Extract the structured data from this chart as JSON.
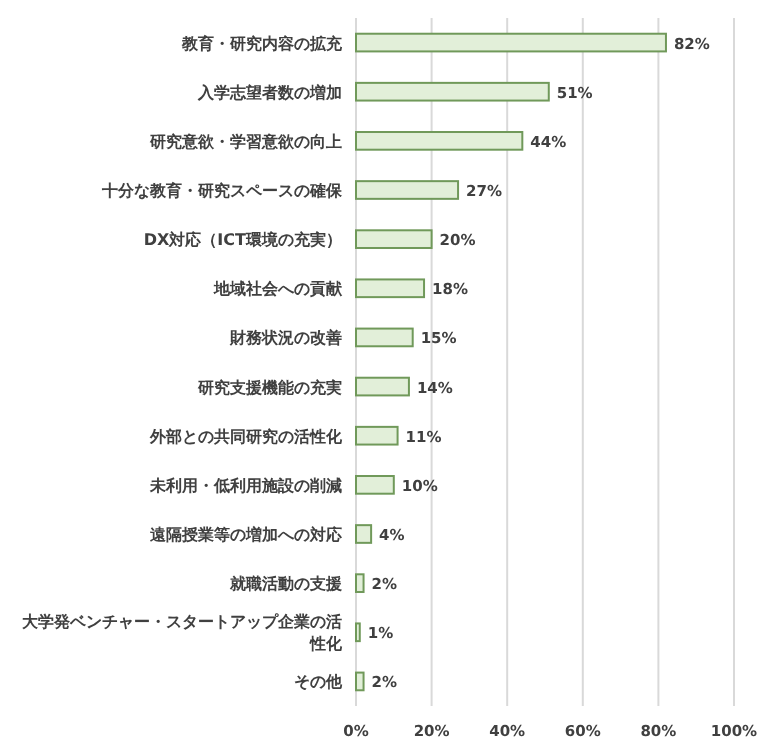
{
  "chart_data": {
    "type": "bar",
    "orientation": "horizontal",
    "categories": [
      "教育・研究内容の拡充",
      "入学志望者数の増加",
      "研究意欲・学習意欲の向上",
      "十分な教育・研究スペースの確保",
      "DX対応（ICT環境の充実）",
      "地域社会への貢献",
      "財務状況の改善",
      "研究支援機能の充実",
      "外部との共同研究の活性化",
      "未利用・低利用施設の削減",
      "遠隔授業等の増加への対応",
      "就職活動の支援",
      "大学発ベンチャー・スタートアップ企業の活性化",
      "その他"
    ],
    "values": [
      82,
      51,
      44,
      27,
      20,
      18,
      15,
      14,
      11,
      10,
      4,
      2,
      1,
      2
    ],
    "value_labels": [
      "82%",
      "51%",
      "44%",
      "27%",
      "20%",
      "18%",
      "15%",
      "14%",
      "11%",
      "10%",
      "4%",
      "2%",
      "1%",
      "2%"
    ],
    "color": "#e2efd9",
    "xlim": [
      0,
      100
    ],
    "xticks": [
      {
        "value": 0,
        "label": "0%"
      },
      {
        "value": 20,
        "label": "20%"
      },
      {
        "value": 40,
        "label": "40%"
      },
      {
        "value": 60,
        "label": "60%"
      },
      {
        "value": 80,
        "label": "80%"
      },
      {
        "value": 100,
        "label": "100%"
      }
    ],
    "grid": "x"
  }
}
